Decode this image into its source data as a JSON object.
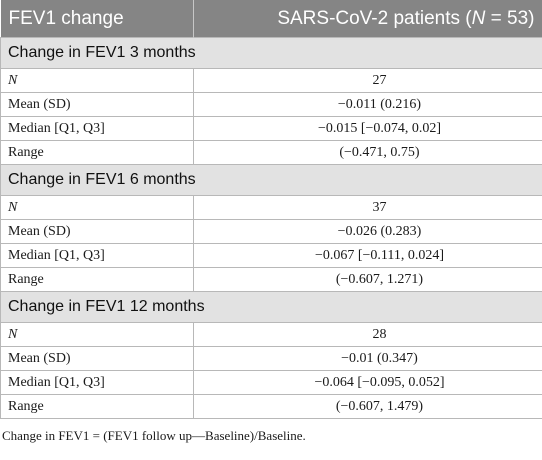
{
  "header": {
    "col1": "FEV1 change",
    "col2_prefix": "SARS-CoV-2 patients (",
    "col2_n": "N",
    "col2_suffix": " = 53)"
  },
  "sections": [
    {
      "title": "Change in FEV1 3 months",
      "rows": [
        {
          "label": "N",
          "value": "27"
        },
        {
          "label": "Mean (SD)",
          "value": "−0.011 (0.216)"
        },
        {
          "label": "Median [Q1, Q3]",
          "value": "−0.015 [−0.074, 0.02]"
        },
        {
          "label": "Range",
          "value": "(−0.471, 0.75)"
        }
      ]
    },
    {
      "title": "Change in FEV1 6 months",
      "rows": [
        {
          "label": "N",
          "value": "37"
        },
        {
          "label": "Mean (SD)",
          "value": "−0.026 (0.283)"
        },
        {
          "label": "Median [Q1, Q3]",
          "value": "−0.067 [−0.111, 0.024]"
        },
        {
          "label": "Range",
          "value": "(−0.607, 1.271)"
        }
      ]
    },
    {
      "title": "Change in FEV1 12 months",
      "rows": [
        {
          "label": "N",
          "value": "28"
        },
        {
          "label": "Mean (SD)",
          "value": "−0.01 (0.347)"
        },
        {
          "label": "Median [Q1, Q3]",
          "value": "−0.064 [−0.095, 0.052]"
        },
        {
          "label": "Range",
          "value": "(−0.607, 1.479)"
        }
      ]
    }
  ],
  "footnote": "Change in FEV1 = (FEV1 follow up—Baseline)/Baseline."
}
